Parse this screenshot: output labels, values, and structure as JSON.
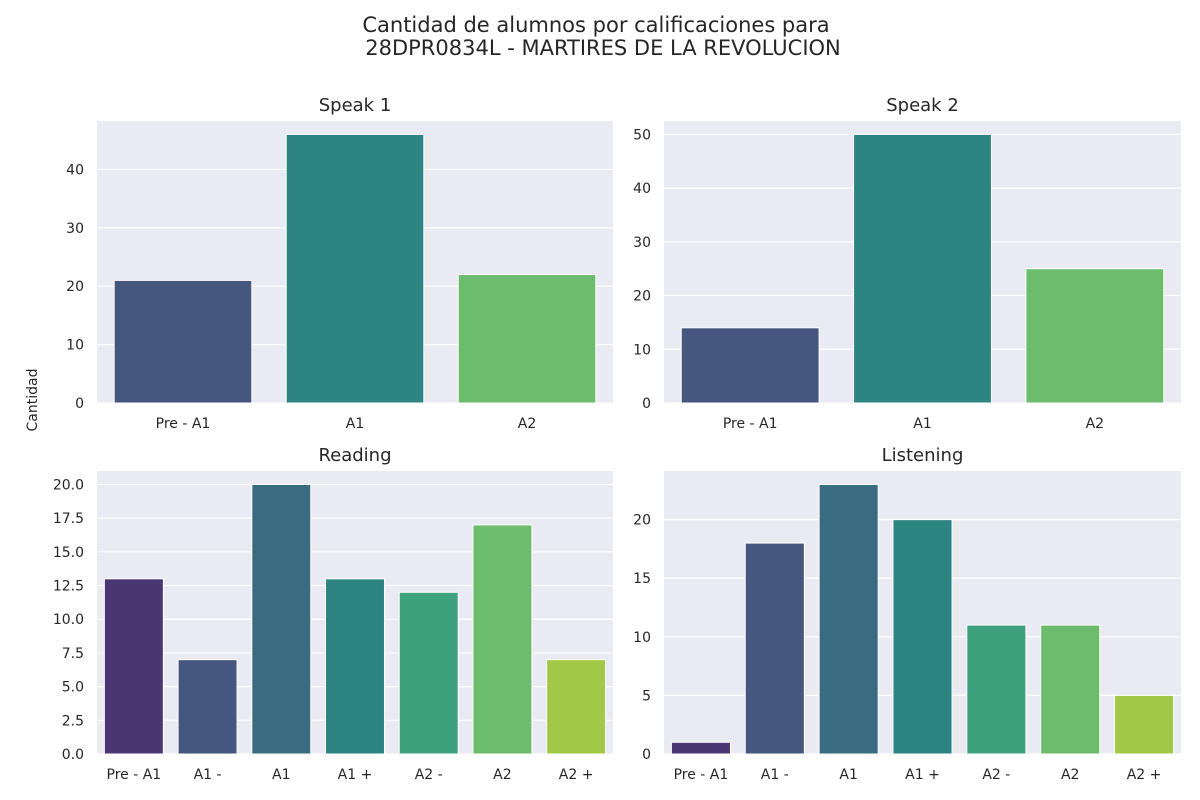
{
  "figure": {
    "title_line1": "Cantidad de alumnos por calificaciones para",
    "title_line2": "28DPR0834L - MARTIRES DE LA REVOLUCION",
    "ylabel": "Cantidad"
  },
  "colors": {
    "background": "#eaeaf2",
    "grid": "#ffffff",
    "palette3": [
      "#46577f",
      "#2e8480",
      "#6bbd6d"
    ],
    "palette7": [
      "#4a3673",
      "#46577f",
      "#3a6c81",
      "#2e8480",
      "#3ca17c",
      "#6bbd6d",
      "#a2c847"
    ]
  },
  "chart_data": [
    {
      "type": "bar",
      "title": "Speak 1",
      "categories": [
        "Pre - A1",
        "A1",
        "A2"
      ],
      "values": [
        21,
        46,
        22
      ],
      "ylim": [
        0,
        48.3
      ],
      "yticks": [
        0,
        10,
        20,
        30,
        40
      ],
      "ytick_labels": [
        "0",
        "10",
        "20",
        "30",
        "40"
      ],
      "grid": true
    },
    {
      "type": "bar",
      "title": "Speak 2",
      "categories": [
        "Pre - A1",
        "A1",
        "A2"
      ],
      "values": [
        14,
        50,
        25
      ],
      "ylim": [
        0,
        52.5
      ],
      "yticks": [
        0,
        10,
        20,
        30,
        40,
        50
      ],
      "ytick_labels": [
        "0",
        "10",
        "20",
        "30",
        "40",
        "50"
      ],
      "grid": true
    },
    {
      "type": "bar",
      "title": "Reading",
      "categories": [
        "Pre - A1",
        "A1 -",
        "A1",
        "A1 +",
        "A2 -",
        "A2",
        "A2 +"
      ],
      "values": [
        13,
        7,
        20,
        13,
        12,
        17,
        7
      ],
      "ylim": [
        0,
        21
      ],
      "yticks": [
        0,
        2.5,
        5,
        7.5,
        10,
        12.5,
        15,
        17.5,
        20
      ],
      "ytick_labels": [
        "0.0",
        "2.5",
        "5.0",
        "7.5",
        "10.0",
        "12.5",
        "15.0",
        "17.5",
        "20.0"
      ],
      "grid": true
    },
    {
      "type": "bar",
      "title": "Listening",
      "categories": [
        "Pre - A1",
        "A1 -",
        "A1",
        "A1 +",
        "A2 -",
        "A2",
        "A2 +"
      ],
      "values": [
        1,
        18,
        23,
        20,
        11,
        11,
        5
      ],
      "ylim": [
        0,
        24.15
      ],
      "yticks": [
        0,
        5,
        10,
        15,
        20
      ],
      "ytick_labels": [
        "0",
        "5",
        "10",
        "15",
        "20"
      ],
      "grid": true
    }
  ]
}
